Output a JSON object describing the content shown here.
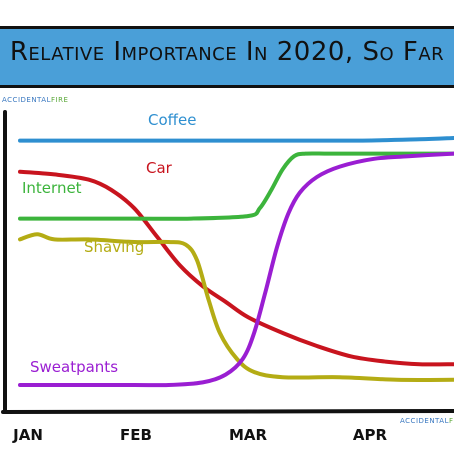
{
  "watermark": {
    "part_a": "ACCIDENTAL",
    "part_b": "FIRE"
  },
  "chart_data": {
    "type": "line",
    "title": "Relative Importance In 2020, So Far",
    "xlabel": "",
    "ylabel": "",
    "categories": [
      "Jan",
      "Feb",
      "Mar",
      "Apr"
    ],
    "xlim": [
      0,
      3.8
    ],
    "ylim": [
      0,
      100
    ],
    "grid": false,
    "series": [
      {
        "name": "Coffee",
        "color": "#2e8fd0",
        "x": [
          0,
          0.5,
          1,
          1.5,
          2,
          2.5,
          3,
          3.5,
          3.8
        ],
        "y": [
          94,
          94,
          94,
          94,
          94,
          94,
          94,
          94.5,
          95
        ]
      },
      {
        "name": "Car",
        "color": "#c8141e",
        "x": [
          0,
          0.3,
          0.6,
          0.8,
          1.0,
          1.2,
          1.4,
          1.6,
          1.8,
          2.0,
          2.3,
          2.6,
          2.9,
          3.2,
          3.5,
          3.8
        ],
        "y": [
          82,
          81,
          79,
          75,
          68,
          57,
          46,
          38,
          32,
          26,
          20,
          15,
          11,
          9,
          8,
          8
        ]
      },
      {
        "name": "Internet",
        "color": "#3cb43c",
        "x": [
          0,
          0.5,
          1,
          1.5,
          2,
          2.1,
          2.2,
          2.3,
          2.4,
          2.5,
          2.7,
          3,
          3.4,
          3.8
        ],
        "y": [
          64,
          64,
          64,
          64,
          65,
          68,
          75,
          83,
          88,
          89,
          89,
          89,
          89,
          89
        ]
      },
      {
        "name": "Shaving",
        "color": "#b4ac14",
        "x": [
          0,
          0.15,
          0.3,
          0.6,
          1.0,
          1.3,
          1.45,
          1.55,
          1.65,
          1.75,
          1.9,
          2.05,
          2.3,
          2.8,
          3.3,
          3.8
        ],
        "y": [
          56,
          58,
          56,
          56,
          55,
          55,
          54,
          48,
          33,
          20,
          10,
          5,
          3,
          3,
          2,
          2
        ]
      },
      {
        "name": "Sweatpants",
        "color": "#9a1ed2",
        "x": [
          0,
          0.5,
          1,
          1.3,
          1.6,
          1.8,
          1.95,
          2.05,
          2.15,
          2.25,
          2.35,
          2.45,
          2.6,
          2.8,
          3.1,
          3.4,
          3.8
        ],
        "y": [
          0,
          0,
          0,
          0,
          1,
          4,
          10,
          20,
          36,
          53,
          66,
          74,
          80,
          84,
          87,
          88,
          89
        ]
      }
    ]
  }
}
